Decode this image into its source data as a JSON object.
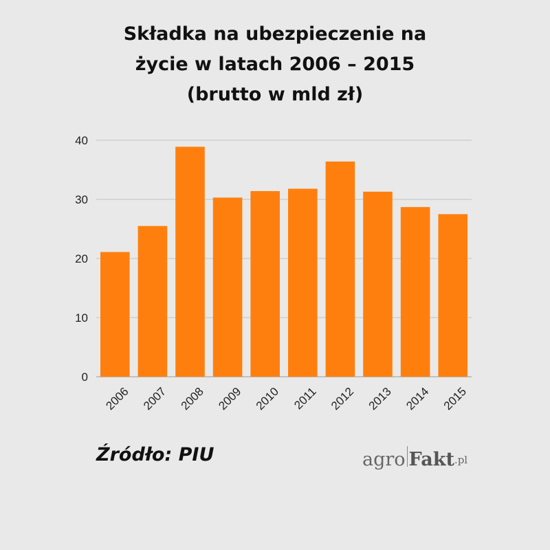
{
  "chart_data": {
    "type": "bar",
    "title_lines": [
      "Składka na ubezpieczenie na",
      "życie w latach 2006 – 2015",
      "(brutto w mld zł)"
    ],
    "categories": [
      "2006",
      "2007",
      "2008",
      "2009",
      "2010",
      "2011",
      "2012",
      "2013",
      "2014",
      "2015"
    ],
    "values": [
      21.1,
      25.5,
      38.9,
      30.3,
      31.4,
      31.8,
      36.4,
      31.3,
      28.7,
      27.5
    ],
    "yticks": [
      0,
      10,
      20,
      30,
      40
    ],
    "ylim": [
      0,
      40
    ],
    "grid": true,
    "bar_color": "#ff7f0e",
    "xlabel": "",
    "ylabel": ""
  },
  "footer": {
    "source": "Źródło: PIU",
    "logo": {
      "agro": "agro",
      "fakt": "Fakt",
      "pl": ".pl"
    }
  }
}
